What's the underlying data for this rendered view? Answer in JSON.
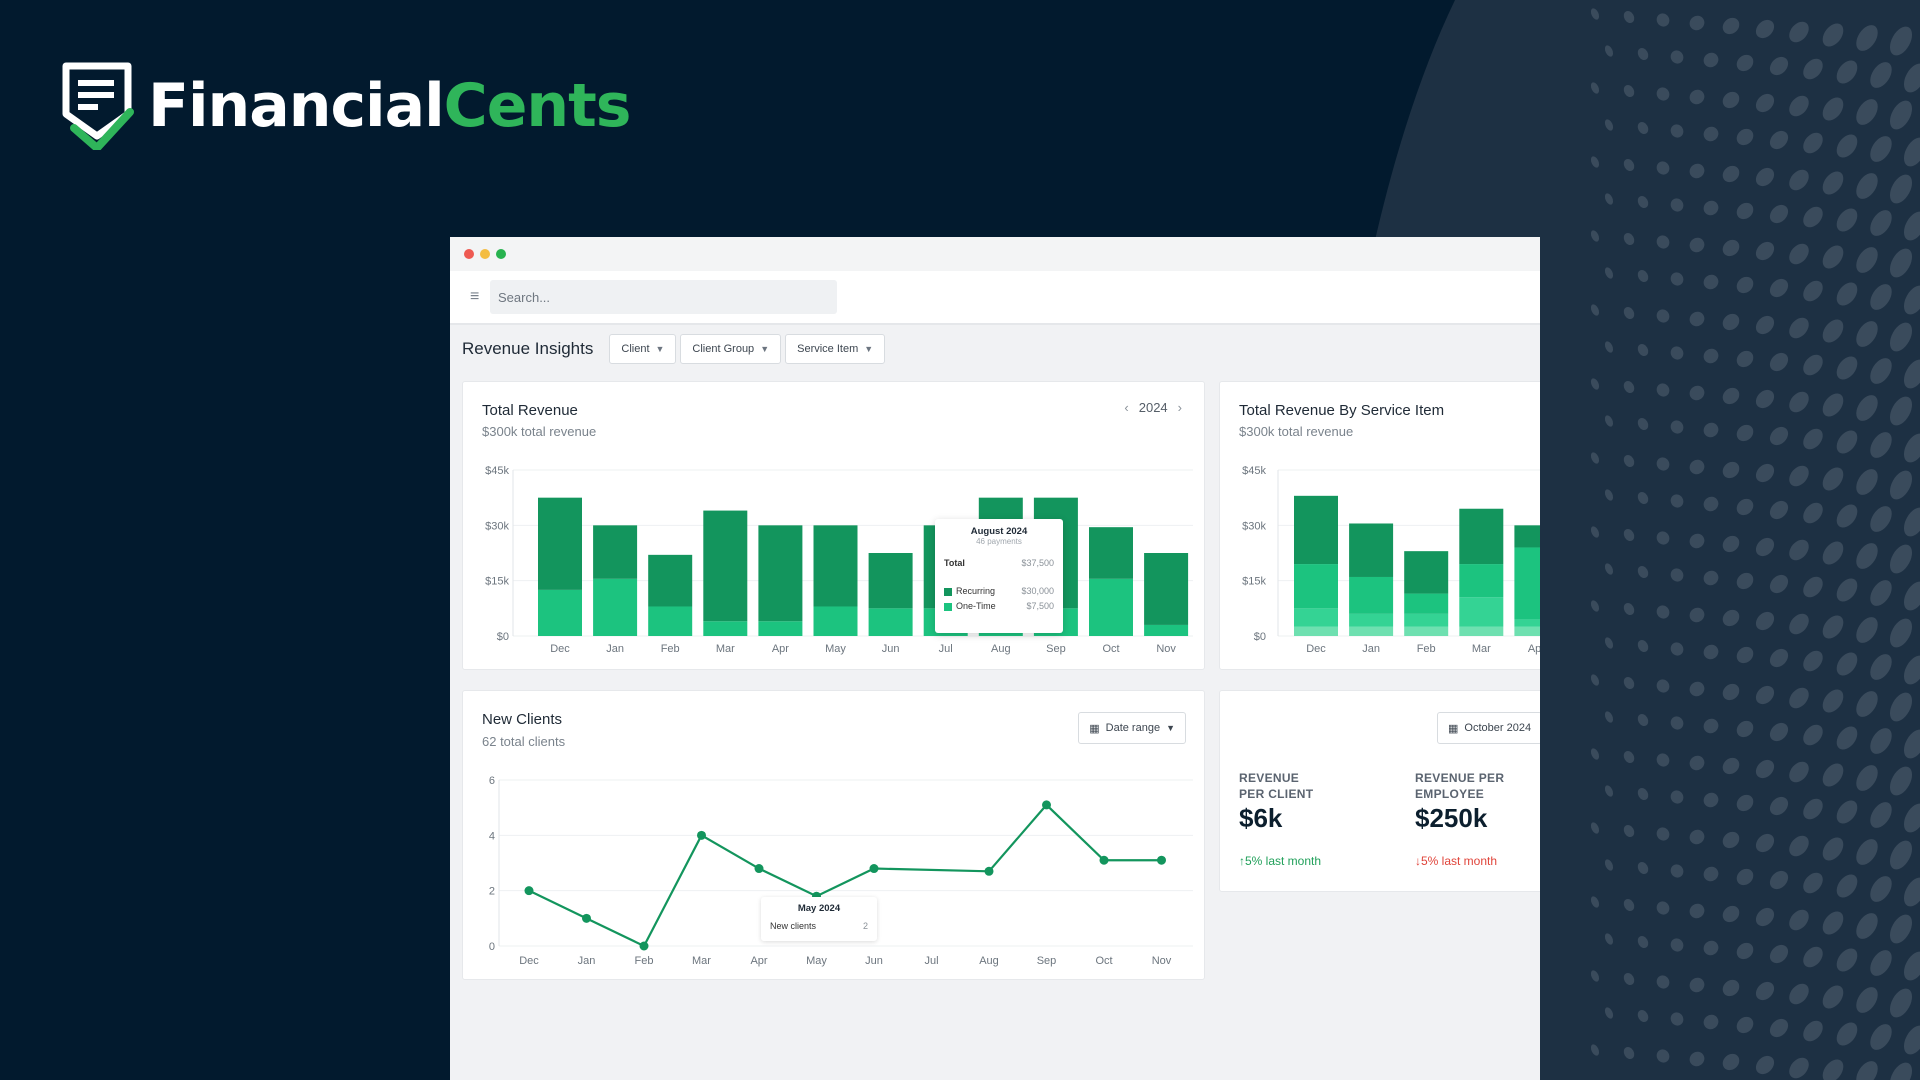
{
  "brand": {
    "name_part1": "Financial",
    "name_part2": "Cents",
    "colors": {
      "background": "#021a2e",
      "accent": "#2fb55a",
      "bar_dark": "#13955d",
      "bar_light": "#1cc37f"
    }
  },
  "search": {
    "placeholder": "Search..."
  },
  "page": {
    "title": "Revenue Insights",
    "filters": [
      "Client",
      "Client Group",
      "Service Item"
    ]
  },
  "total_revenue": {
    "title": "Total Revenue",
    "subtitle": "$300k total revenue",
    "year": "2024",
    "tooltip": {
      "month": "August 2024",
      "payments": "46 payments",
      "total_label": "Total",
      "total_value": "$37,500",
      "rows": [
        {
          "label": "Recurring",
          "value": "$30,000"
        },
        {
          "label": "One-Time",
          "value": "$7,500"
        }
      ]
    }
  },
  "service_item": {
    "title": "Total Revenue By Service Item",
    "subtitle": "$300k total revenue"
  },
  "new_clients": {
    "title": "New Clients",
    "subtitle": "62 total clients",
    "date_button": "Date range",
    "tooltip": {
      "month": "May 2024",
      "label": "New clients",
      "value": "2"
    }
  },
  "kpis": {
    "date_button": "October 2024",
    "items": [
      {
        "label_line1": "REVENUE",
        "label_line2": "PER CLIENT",
        "value": "$6k",
        "trend": "5% last month",
        "direction": "up",
        "color": "#21a05a"
      },
      {
        "label_line1": "REVENUE PER",
        "label_line2": "EMPLOYEE",
        "value": "$250k",
        "trend": "5% last month",
        "direction": "down",
        "color": "#e0443a"
      }
    ]
  },
  "chart_data": [
    {
      "type": "bar",
      "title": "Total Revenue",
      "categories": [
        "Dec",
        "Jan",
        "Feb",
        "Mar",
        "Apr",
        "May",
        "Jun",
        "Jul",
        "Aug",
        "Sep",
        "Oct",
        "Nov"
      ],
      "yticks": [
        "$0",
        "$15k",
        "$30k",
        "$45k"
      ],
      "ylim": [
        0,
        45000
      ],
      "stacked": true,
      "series": [
        {
          "name": "One-Time",
          "color": "#1cc37f",
          "values": [
            12500,
            15500,
            8000,
            4000,
            4000,
            8000,
            7500,
            7500,
            7500,
            7500,
            15500,
            3000
          ]
        },
        {
          "name": "Recurring",
          "color": "#13955d",
          "values": [
            25000,
            14500,
            14000,
            30000,
            26000,
            22000,
            15000,
            22500,
            30000,
            30000,
            14000,
            19500
          ]
        }
      ]
    },
    {
      "type": "bar",
      "title": "Total Revenue By Service Item",
      "categories": [
        "Dec",
        "Jan",
        "Feb",
        "Mar",
        "Apr"
      ],
      "yticks": [
        "$0",
        "$15k",
        "$30k",
        "$45k"
      ],
      "ylim": [
        0,
        45000
      ],
      "stacked": true,
      "series": [
        {
          "color": "#6ee0b0",
          "values": [
            2500,
            2500,
            2500,
            2500,
            2500
          ]
        },
        {
          "color": "#34d394",
          "values": [
            5000,
            3500,
            3500,
            8000,
            2000
          ]
        },
        {
          "color": "#1cc37f",
          "values": [
            12000,
            10000,
            5500,
            9000,
            19500
          ]
        },
        {
          "color": "#13955d",
          "values": [
            18500,
            14500,
            11500,
            15000,
            6000
          ]
        }
      ]
    },
    {
      "type": "line",
      "title": "New Clients",
      "categories": [
        "Dec",
        "Jan",
        "Feb",
        "Mar",
        "Apr",
        "May",
        "Jun",
        "Jul",
        "Aug",
        "Sep",
        "Oct",
        "Nov"
      ],
      "yticks": [
        "0",
        "2",
        "4",
        "6"
      ],
      "ylim": [
        0,
        6
      ],
      "series": [
        {
          "name": "New clients",
          "color": "#13955d",
          "values": [
            2,
            1,
            0,
            4,
            2.8,
            1.8,
            2.8,
            null,
            2.7,
            5.1,
            3.1,
            3.1
          ]
        }
      ]
    }
  ]
}
